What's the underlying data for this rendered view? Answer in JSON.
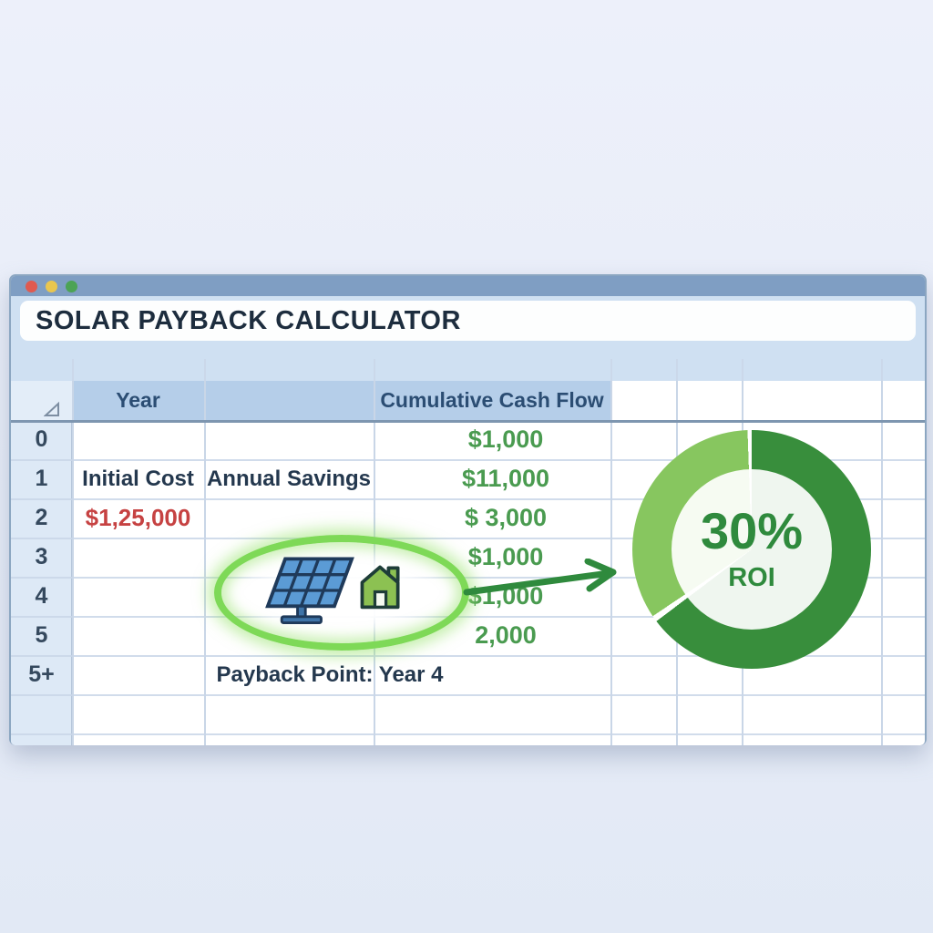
{
  "window": {
    "title": "SOLAR PAYBACK CALCULATOR",
    "controls": [
      "close",
      "minimize",
      "zoom"
    ]
  },
  "spreadsheet": {
    "corner_icon": "select-all-triangle",
    "headers": {
      "year": "Year",
      "middle": "",
      "cashflow": "Cumulative Cash Flow"
    },
    "rows": [
      {
        "num": "0",
        "year": "",
        "middle": "",
        "cashflow": "$1,000"
      },
      {
        "num": "1",
        "year": "Initial Cost",
        "middle": "Annual Savings",
        "cashflow": "$11,000"
      },
      {
        "num": "2",
        "year": "$1,25,000",
        "middle": "",
        "cashflow": "$ 3,000"
      },
      {
        "num": "3",
        "year": "",
        "middle": "",
        "cashflow": "$1,000"
      },
      {
        "num": "4",
        "year": "",
        "middle": "",
        "cashflow": "$1,000"
      },
      {
        "num": "5",
        "year": "",
        "middle": "",
        "cashflow": "2,000"
      },
      {
        "num": "5+",
        "year": "",
        "middle": "",
        "cashflow": ""
      }
    ],
    "annotation": "Payback Point: Year 4"
  },
  "highlight": {
    "icons": [
      "solar-panel-icon",
      "house-icon"
    ]
  },
  "roi_chart": {
    "value": "30%",
    "label": "ROI",
    "dark_deg": 233
  },
  "chart_data": {
    "type": "pie",
    "title": "ROI donut",
    "slices": [
      {
        "name": "dark-green",
        "percent": 65
      },
      {
        "name": "light-green",
        "percent": 35
      }
    ],
    "center_value": "30%",
    "center_label": "ROI",
    "legend": "none"
  },
  "colors": {
    "titlebar": "#7f9ec3",
    "window_bg": "#cfe0f2",
    "window_border": "#8ba6c1",
    "light_red": "#e05a50",
    "light_yellow": "#e9c64f",
    "light_green": "#4ca355",
    "title_text": "#1d2d3e",
    "header_bg": "#b5cee9",
    "header_text": "#2b4d73",
    "rownum_bg": "#dde9f6",
    "rownum_text": "#35495e",
    "gridline": "#c9d6e7",
    "cell_text": "#24384e",
    "value_green": "#4a9b50",
    "value_red": "#c64242",
    "highlight_green": "#7ed957",
    "arrow_green": "#2f8a3d",
    "donut_dark": "#388e3c",
    "donut_light": "#87c65f",
    "roi_text": "#2f8a3d",
    "panel_blue": "#5b9bd5",
    "panel_outline": "#1f3a5a",
    "house_green": "#8cc152"
  }
}
